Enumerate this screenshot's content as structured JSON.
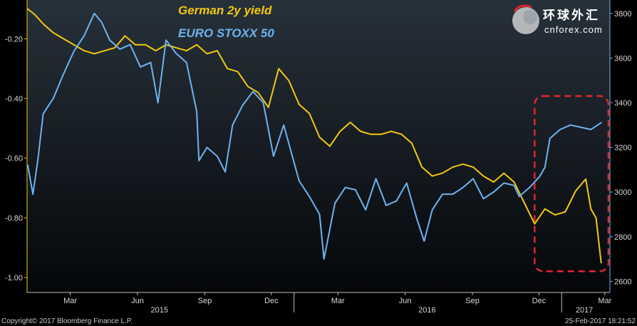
{
  "chart_data": {
    "type": "line",
    "series": [
      {
        "name": "German 2y yield",
        "axis": "left",
        "color": "#f2c811",
        "x": [
          "2015-01-02",
          "2015-01-12",
          "2015-01-23",
          "2015-02-06",
          "2015-02-20",
          "2015-03-06",
          "2015-03-20",
          "2015-04-03",
          "2015-04-17",
          "2015-05-01",
          "2015-05-15",
          "2015-05-29",
          "2015-06-12",
          "2015-06-26",
          "2015-07-10",
          "2015-07-24",
          "2015-08-07",
          "2015-08-21",
          "2015-09-04",
          "2015-09-18",
          "2015-10-02",
          "2015-10-16",
          "2015-10-30",
          "2015-11-13",
          "2015-11-27",
          "2015-12-11",
          "2015-12-25",
          "2016-01-08",
          "2016-01-22",
          "2016-02-05",
          "2016-02-19",
          "2016-03-04",
          "2016-03-18",
          "2016-04-01",
          "2016-04-15",
          "2016-04-29",
          "2016-05-13",
          "2016-05-27",
          "2016-06-10",
          "2016-06-24",
          "2016-07-08",
          "2016-07-22",
          "2016-08-05",
          "2016-08-19",
          "2016-09-02",
          "2016-09-16",
          "2016-09-30",
          "2016-10-14",
          "2016-10-28",
          "2016-11-11",
          "2016-11-25",
          "2016-12-09",
          "2016-12-23",
          "2017-01-06",
          "2017-01-20",
          "2017-02-03",
          "2017-02-10",
          "2017-02-17",
          "2017-02-24"
        ],
        "values": [
          -0.1,
          -0.12,
          -0.15,
          -0.18,
          -0.2,
          -0.22,
          -0.24,
          -0.25,
          -0.24,
          -0.23,
          -0.19,
          -0.22,
          -0.22,
          -0.24,
          -0.22,
          -0.23,
          -0.24,
          -0.22,
          -0.25,
          -0.24,
          -0.3,
          -0.31,
          -0.36,
          -0.38,
          -0.43,
          -0.3,
          -0.34,
          -0.42,
          -0.45,
          -0.53,
          -0.56,
          -0.51,
          -0.48,
          -0.51,
          -0.52,
          -0.52,
          -0.51,
          -0.52,
          -0.55,
          -0.63,
          -0.66,
          -0.65,
          -0.63,
          -0.62,
          -0.63,
          -0.66,
          -0.68,
          -0.65,
          -0.68,
          -0.75,
          -0.82,
          -0.77,
          -0.79,
          -0.78,
          -0.71,
          -0.67,
          -0.77,
          -0.8,
          -0.95
        ]
      },
      {
        "name": "EURO STOXX 50",
        "axis": "right",
        "color": "#6fb3ef",
        "x": [
          "2015-01-02",
          "2015-01-09",
          "2015-01-16",
          "2015-01-23",
          "2015-02-06",
          "2015-02-20",
          "2015-03-06",
          "2015-03-20",
          "2015-04-03",
          "2015-04-13",
          "2015-04-24",
          "2015-05-08",
          "2015-05-22",
          "2015-06-05",
          "2015-06-19",
          "2015-06-29",
          "2015-07-10",
          "2015-07-24",
          "2015-08-07",
          "2015-08-21",
          "2015-08-24",
          "2015-09-04",
          "2015-09-18",
          "2015-09-29",
          "2015-10-09",
          "2015-10-23",
          "2015-11-06",
          "2015-11-20",
          "2015-12-04",
          "2015-12-18",
          "2016-01-08",
          "2016-01-22",
          "2016-02-05",
          "2016-02-11",
          "2016-02-26",
          "2016-03-11",
          "2016-03-25",
          "2016-04-08",
          "2016-04-22",
          "2016-05-06",
          "2016-05-20",
          "2016-06-03",
          "2016-06-17",
          "2016-06-27",
          "2016-07-08",
          "2016-07-22",
          "2016-08-05",
          "2016-08-19",
          "2016-09-02",
          "2016-09-16",
          "2016-09-30",
          "2016-10-14",
          "2016-10-28",
          "2016-11-04",
          "2016-11-18",
          "2016-12-02",
          "2016-12-09",
          "2016-12-16",
          "2016-12-30",
          "2017-01-13",
          "2017-01-27",
          "2017-02-10",
          "2017-02-24"
        ],
        "values": [
          3120,
          2990,
          3150,
          3350,
          3420,
          3530,
          3630,
          3700,
          3800,
          3760,
          3680,
          3640,
          3660,
          3560,
          3580,
          3400,
          3680,
          3620,
          3580,
          3360,
          3140,
          3200,
          3160,
          3090,
          3300,
          3390,
          3450,
          3400,
          3160,
          3300,
          3050,
          2980,
          2900,
          2700,
          2950,
          3020,
          3010,
          2920,
          3060,
          2940,
          2960,
          3040,
          2880,
          2780,
          2920,
          2990,
          2990,
          3020,
          3060,
          2970,
          3000,
          3040,
          3030,
          2980,
          3020,
          3070,
          3110,
          3240,
          3280,
          3300,
          3290,
          3280,
          3310
        ]
      }
    ],
    "left_axis": {
      "ylim": [
        -1.05,
        -0.07
      ],
      "ticks": [
        -0.2,
        -0.4,
        -0.6,
        -0.8,
        -1.0
      ],
      "tick_labels": [
        "-0.20",
        "-0.40",
        "-0.60",
        "-0.80",
        "-1.00"
      ]
    },
    "right_axis": {
      "ylim": [
        2550,
        3860
      ],
      "ticks": [
        3800,
        3600,
        3400,
        3200,
        3000,
        2800,
        2600
      ],
      "tick_labels": [
        "3800",
        "3600",
        "3400",
        "3200",
        "3000",
        "2800",
        "2600"
      ]
    },
    "x_axis": {
      "range": [
        "2015-01-01",
        "2017-03-08"
      ],
      "month_ticks": [
        {
          "date": "2015-03-01",
          "label": "Mar"
        },
        {
          "date": "2015-06-01",
          "label": "Jun"
        },
        {
          "date": "2015-09-01",
          "label": "Sep"
        },
        {
          "date": "2015-12-01",
          "label": "Dec"
        },
        {
          "date": "2016-03-01",
          "label": "Mar"
        },
        {
          "date": "2016-06-01",
          "label": "Jun"
        },
        {
          "date": "2016-09-01",
          "label": "Sep"
        },
        {
          "date": "2016-12-01",
          "label": "Dec"
        },
        {
          "date": "2017-03-01",
          "label": "Mar"
        }
      ],
      "year_labels": [
        {
          "date": "2015-07-01",
          "label": "2015"
        },
        {
          "date": "2016-07-01",
          "label": "2016"
        },
        {
          "date": "2017-02-01",
          "label": "2017"
        }
      ],
      "year_boundaries": [
        "2016-01-01",
        "2017-01-01"
      ]
    },
    "highlight": {
      "x_range": [
        "2016-11-25",
        "2017-03-06"
      ],
      "y_range": [
        2645,
        3430
      ],
      "axis": "right",
      "color": "#e3262b",
      "style": "dashed"
    },
    "legend": [
      "German 2y yield",
      "EURO STOXX 50"
    ],
    "legend_placement": "top-left",
    "grid": false
  },
  "footer": {
    "copyright": "Copyright© 2017 Bloomberg Finance L.P.",
    "timestamp": "25-Feb-2017 18:21:52"
  },
  "watermark": {
    "chinese": "环球外汇",
    "domain": "cnforex.com"
  }
}
